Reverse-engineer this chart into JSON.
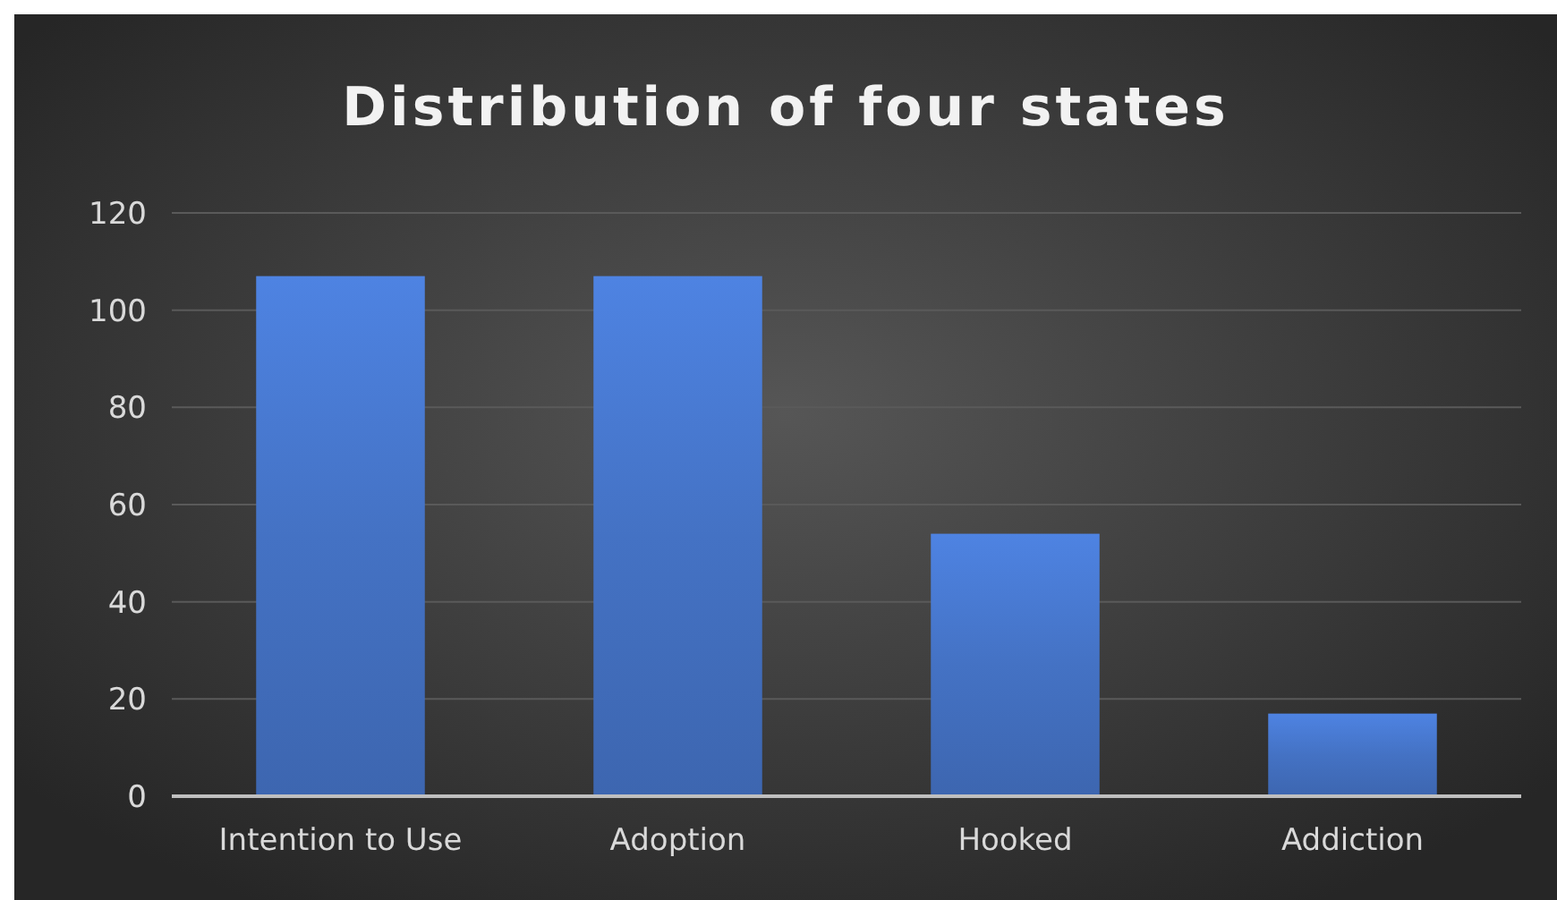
{
  "chart_data": {
    "type": "bar",
    "title": "Distribution of four states",
    "categories": [
      "Intention to Use",
      "Adoption",
      "Hooked",
      "Addiction"
    ],
    "values": [
      107,
      107,
      54,
      17
    ],
    "color": "#4472c4",
    "ylim": [
      0,
      120
    ],
    "yticks": [
      0,
      20,
      40,
      60,
      80,
      100,
      120
    ],
    "grid": "y"
  }
}
